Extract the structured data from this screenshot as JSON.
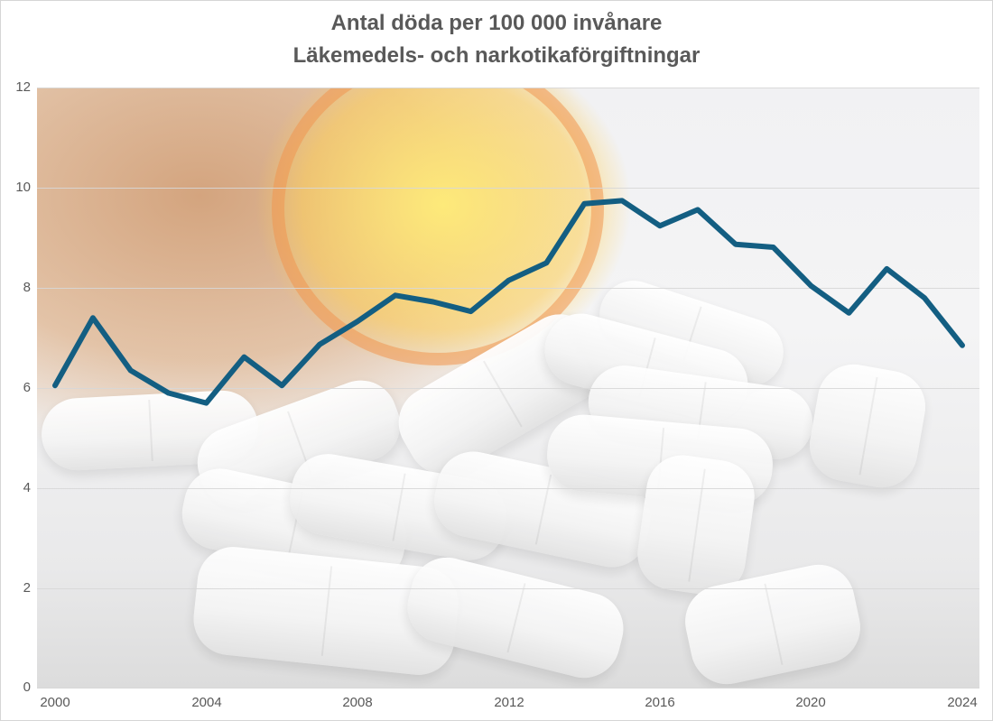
{
  "chart_data": {
    "type": "line",
    "title": "Antal döda per 100 000 invånare",
    "subtitle": "Läkemedels- och narkotikaförgiftningar",
    "xlabel": "",
    "ylabel": "",
    "x": [
      2000,
      2001,
      2002,
      2003,
      2004,
      2005,
      2006,
      2007,
      2008,
      2009,
      2010,
      2011,
      2012,
      2013,
      2014,
      2015,
      2016,
      2017,
      2018,
      2019,
      2020,
      2021,
      2022,
      2023,
      2024
    ],
    "series": [
      {
        "name": "Antal döda per 100 000 invånare",
        "color": "#135e82",
        "values": [
          6.05,
          7.4,
          6.35,
          5.9,
          5.7,
          6.62,
          6.05,
          6.87,
          7.33,
          7.85,
          7.72,
          7.53,
          8.15,
          8.5,
          9.68,
          9.74,
          9.24,
          9.56,
          8.87,
          8.81,
          8.04,
          7.5,
          8.38,
          7.8,
          6.85
        ]
      }
    ],
    "ylim": [
      0,
      12
    ],
    "y_ticks": [
      "0",
      "2",
      "4",
      "6",
      "8",
      "10",
      "12"
    ],
    "x_ticks": [
      "2000",
      "2004",
      "2008",
      "2012",
      "2016",
      "2020",
      "2024"
    ],
    "grid": true,
    "legend": "none",
    "background": "photo of pill bottle and white tablets"
  },
  "header": {
    "title_line1": "Antal döda per 100 000 invånare",
    "title_line2": "Läkemedels- och narkotikaförgiftningar"
  },
  "axis": {
    "y_labels": [
      "12",
      "10",
      "8",
      "6",
      "4",
      "2",
      "0"
    ],
    "x_labels": [
      "2000",
      "2004",
      "2008",
      "2012",
      "2016",
      "2020",
      "2024"
    ]
  }
}
